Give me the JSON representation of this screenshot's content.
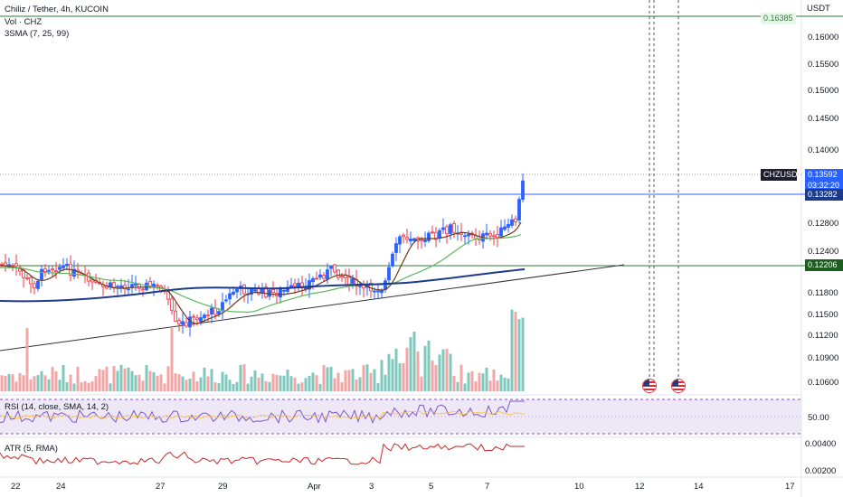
{
  "header": {
    "symbol_line": "Chiliz / Tether, 4h, KUCOIN",
    "volume_line": "Vol · CHZ",
    "sma_line": "3SMA (7, 25, 99)"
  },
  "price_axis": {
    "currency": "USDT",
    "labels": [
      "0.16000",
      "0.15500",
      "0.15000",
      "0.14500",
      "0.14000",
      "0.12800",
      "0.12400",
      "0.11800",
      "0.11500",
      "0.11200",
      "0.10900",
      "0.10600"
    ],
    "top_partial": "0.16385"
  },
  "price_tags": {
    "symbol": "CHZUSDT",
    "last_price": "0.13592",
    "countdown": "03:32:20",
    "upper_hline": "0.13282",
    "lower_hline": "0.12206"
  },
  "time_axis": {
    "labels": [
      "22",
      "24",
      "27",
      "29",
      "Apr",
      "3",
      "5",
      "7",
      "10",
      "12",
      "14",
      "17"
    ]
  },
  "rsi_pane": {
    "title": "RSI (14, close, SMA, 14, 2)",
    "scale_label": "50.00"
  },
  "atr_pane": {
    "title": "ATR (5, RMA)",
    "scale_labels": [
      "0.00400",
      "0.00200"
    ]
  },
  "events": {
    "icons": [
      "us-flag-icon",
      "us-flag-icon"
    ]
  },
  "colors": {
    "up": "#2962ff",
    "down": "#f23645",
    "volume_up": "#7fc8bd",
    "volume_down": "#f4a5a6",
    "sma7": "#6d3b1a",
    "sma25": "#5cb85c",
    "sma99": "#1e3a8a",
    "hline_blue": "#2962ff",
    "hline_green": "#2e7d32",
    "rsi": "#7e57c2",
    "atr": "#c62828"
  }
}
